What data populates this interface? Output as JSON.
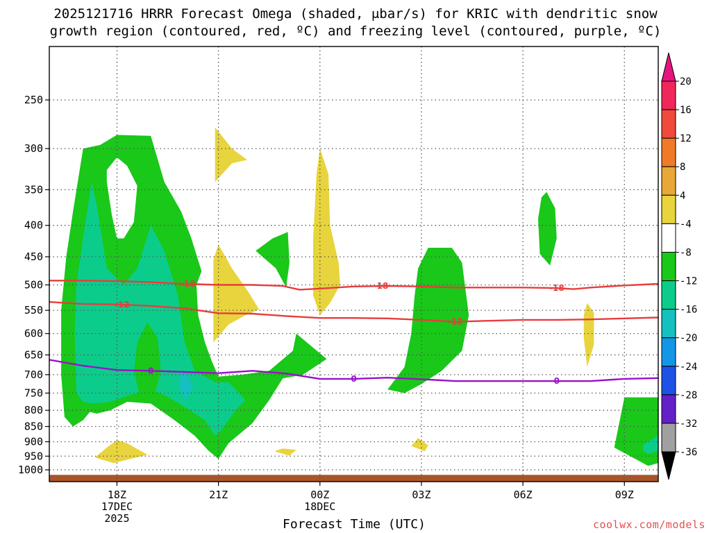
{
  "title": {
    "line1": "2025121716 HRRR Forecast Omega (shaded, μbar/s) for KRIC with dendritic snow",
    "line2": "growth region (contoured, red, ºC) and freezing level (contoured, purple, ºC)"
  },
  "credit": "coolwx.com/models",
  "chart_data": {
    "type": "time-height cross section",
    "title": "2025121716 HRRR Forecast Omega (shaded, μbar/s) for KRIC with dendritic snow growth region (contoured, red, ºC) and freezing level (contoured, purple, ºC)",
    "xlabel": "Forecast Time (UTC)",
    "ylabel": "",
    "x_ticks": [
      {
        "hour": 2,
        "lines": [
          "18Z",
          "17DEC",
          "2025"
        ]
      },
      {
        "hour": 5,
        "lines": [
          "21Z"
        ]
      },
      {
        "hour": 8,
        "lines": [
          "00Z",
          "18DEC"
        ]
      },
      {
        "hour": 11,
        "lines": [
          "03Z"
        ]
      },
      {
        "hour": 14,
        "lines": [
          "06Z"
        ]
      },
      {
        "hour": 17,
        "lines": [
          "09Z"
        ]
      }
    ],
    "xlim": [
      0,
      18
    ],
    "y_ticks": [
      250,
      300,
      350,
      400,
      450,
      500,
      550,
      600,
      650,
      700,
      750,
      800,
      850,
      900,
      950,
      1000
    ],
    "ylim_hpa": [
      1040,
      190
    ],
    "grid": true,
    "colorbar": {
      "labels": [
        "20",
        "16",
        "12",
        "8",
        "4",
        "-4",
        "-8",
        "-12",
        "-16",
        "-20",
        "-24",
        "-28",
        "-32",
        "-36"
      ],
      "colors": [
        "#f0275a",
        "#f04a3c",
        "#f07a28",
        "#e8a838",
        "#e8d43c",
        "#ffffff",
        "#19c819",
        "#0ccc8c",
        "#14c0c0",
        "#1496e6",
        "#1e52e6",
        "#6420c8",
        "#a00ac8",
        "#a0a0a0"
      ],
      "top_arrow_color": "#e6147d",
      "bottom_arrow_color": "#000000"
    },
    "omega_colors": {
      "green": "#19c819",
      "teal": "#0ccc8c",
      "cyan": "#14c0c0",
      "yellow": "#e8d43c"
    },
    "contours": [
      {
        "level": "-18",
        "color": "#e83c3c",
        "points": [
          [
            0,
            492
          ],
          [
            1,
            492
          ],
          [
            2,
            493
          ],
          [
            3,
            495
          ],
          [
            4,
            498
          ],
          [
            5,
            500
          ],
          [
            6,
            500
          ],
          [
            6.9,
            502
          ],
          [
            7.4,
            509
          ],
          [
            8,
            507
          ],
          [
            9,
            503
          ],
          [
            10,
            502
          ],
          [
            11,
            503
          ],
          [
            12,
            505
          ],
          [
            13,
            505
          ],
          [
            14,
            505
          ],
          [
            15,
            506
          ],
          [
            15.5,
            508
          ],
          [
            16,
            505
          ],
          [
            17,
            501
          ],
          [
            18,
            498
          ]
        ],
        "labels": [
          {
            "hour": 4.1
          },
          {
            "hour": 9.8
          },
          {
            "hour": 15.0
          }
        ]
      },
      {
        "level": "-12",
        "color": "#e83c3c",
        "points": [
          [
            0,
            533
          ],
          [
            1,
            537
          ],
          [
            2,
            538
          ],
          [
            3,
            541
          ],
          [
            4,
            546
          ],
          [
            5,
            556
          ],
          [
            6,
            557
          ],
          [
            7,
            562
          ],
          [
            8,
            566
          ],
          [
            9,
            566
          ],
          [
            10,
            567
          ],
          [
            11,
            570
          ],
          [
            12,
            574
          ],
          [
            13,
            572
          ],
          [
            14,
            570
          ],
          [
            15,
            570
          ],
          [
            16,
            569
          ],
          [
            17,
            567
          ],
          [
            18,
            565
          ]
        ],
        "labels": [
          {
            "hour": 2.15
          },
          {
            "hour": 12.0
          }
        ]
      },
      {
        "level": "0",
        "color": "#9a10c8",
        "points": [
          [
            0,
            662
          ],
          [
            1,
            677
          ],
          [
            2,
            688
          ],
          [
            3,
            690
          ],
          [
            4,
            693
          ],
          [
            5,
            696
          ],
          [
            6,
            690
          ],
          [
            7,
            697
          ],
          [
            8,
            711
          ],
          [
            9,
            711
          ],
          [
            10,
            708
          ],
          [
            11,
            712
          ],
          [
            12,
            717
          ],
          [
            13,
            717
          ],
          [
            14,
            717
          ],
          [
            15,
            717
          ],
          [
            16,
            717
          ],
          [
            17,
            711
          ],
          [
            18,
            709
          ]
        ],
        "labels": [
          {
            "hour": 3.0
          },
          {
            "hour": 9.0
          },
          {
            "hour": 15.0
          }
        ]
      }
    ],
    "omega_regions": [
      {
        "name": "rising-motion-main-green",
        "class": "-8 to -4",
        "color": "green",
        "points": [
          [
            0.45,
            820
          ],
          [
            0.35,
            700
          ],
          [
            0.35,
            550
          ],
          [
            0.5,
            450
          ],
          [
            0.7,
            380
          ],
          [
            1.0,
            300
          ],
          [
            1.5,
            296
          ],
          [
            2.0,
            285
          ],
          [
            3.0,
            286
          ],
          [
            3.4,
            340
          ],
          [
            3.9,
            380
          ],
          [
            4.2,
            420
          ],
          [
            4.5,
            475
          ],
          [
            4.35,
            500
          ],
          [
            4.4,
            560
          ],
          [
            4.6,
            620
          ],
          [
            4.8,
            665
          ],
          [
            5.0,
            705
          ],
          [
            5.7,
            700
          ],
          [
            6.5,
            690
          ],
          [
            7.2,
            640
          ],
          [
            7.3,
            600
          ],
          [
            8.2,
            660
          ],
          [
            7.5,
            700
          ],
          [
            6.9,
            710
          ],
          [
            6.5,
            770
          ],
          [
            6.0,
            840
          ],
          [
            5.3,
            905
          ],
          [
            5.0,
            960
          ],
          [
            4.7,
            930
          ],
          [
            4.3,
            880
          ],
          [
            3.7,
            830
          ],
          [
            3.0,
            780
          ],
          [
            2.3,
            775
          ],
          [
            1.8,
            800
          ],
          [
            1.4,
            810
          ],
          [
            1.2,
            805
          ],
          [
            1.0,
            830
          ],
          [
            0.7,
            850
          ]
        ]
      },
      {
        "name": "rising-motion-main-teal",
        "class": "-12 to -8",
        "color": "teal",
        "points": [
          [
            0.8,
            750
          ],
          [
            0.75,
            600
          ],
          [
            0.8,
            500
          ],
          [
            1.0,
            420
          ],
          [
            1.25,
            340
          ],
          [
            1.4,
            370
          ],
          [
            1.7,
            470
          ],
          [
            2.2,
            500
          ],
          [
            2.6,
            470
          ],
          [
            3.0,
            400
          ],
          [
            3.4,
            440
          ],
          [
            3.8,
            520
          ],
          [
            4.0,
            620
          ],
          [
            4.3,
            690
          ],
          [
            4.9,
            720
          ],
          [
            5.3,
            720
          ],
          [
            5.8,
            770
          ],
          [
            5.5,
            800
          ],
          [
            5.1,
            860
          ],
          [
            4.9,
            880
          ],
          [
            4.6,
            830
          ],
          [
            4.0,
            790
          ],
          [
            3.5,
            760
          ],
          [
            3.0,
            740
          ],
          [
            2.4,
            755
          ],
          [
            1.8,
            775
          ],
          [
            1.3,
            780
          ],
          [
            1.0,
            775
          ]
        ]
      },
      {
        "name": "rising-motion-main-cyan",
        "class": "-16 to -12",
        "color": "cyan",
        "points": [
          [
            3.85,
            700
          ],
          [
            4.05,
            695
          ],
          [
            4.25,
            730
          ],
          [
            4.05,
            770
          ],
          [
            3.85,
            740
          ]
        ]
      },
      {
        "name": "rising-motion-green-inset",
        "class": "-8 to -4",
        "color": "green",
        "points": [
          [
            2.5,
            690
          ],
          [
            2.6,
            620
          ],
          [
            2.9,
            575
          ],
          [
            3.2,
            610
          ],
          [
            3.3,
            690
          ],
          [
            3.1,
            760
          ],
          [
            2.7,
            770
          ]
        ]
      },
      {
        "name": "omega-white-hole",
        "class": "-4 to 4",
        "color": "white",
        "points": [
          [
            1.7,
            340
          ],
          [
            1.7,
            325
          ],
          [
            2.0,
            310
          ],
          [
            2.3,
            320
          ],
          [
            2.6,
            345
          ],
          [
            2.5,
            395
          ],
          [
            2.2,
            420
          ],
          [
            2.0,
            420
          ],
          [
            1.85,
            385
          ]
        ]
      },
      {
        "name": "rising-motion-small-a",
        "class": "-8 to -4",
        "color": "green",
        "points": [
          [
            6.1,
            440
          ],
          [
            6.6,
            420
          ],
          [
            7.05,
            410
          ],
          [
            7.1,
            460
          ],
          [
            7.0,
            505
          ],
          [
            6.7,
            470
          ]
        ]
      },
      {
        "name": "rising-motion-03z",
        "class": "-8 to -4",
        "color": "green",
        "points": [
          [
            10.0,
            740
          ],
          [
            10.5,
            680
          ],
          [
            10.7,
            600
          ],
          [
            10.8,
            520
          ],
          [
            10.9,
            470
          ],
          [
            11.2,
            435
          ],
          [
            11.9,
            435
          ],
          [
            12.2,
            460
          ],
          [
            12.4,
            560
          ],
          [
            12.2,
            640
          ],
          [
            11.6,
            690
          ],
          [
            11.0,
            725
          ],
          [
            10.5,
            750
          ]
        ]
      },
      {
        "name": "rising-motion-07z",
        "class": "-8 to -4",
        "color": "green",
        "points": [
          [
            14.45,
            390
          ],
          [
            14.55,
            360
          ],
          [
            14.7,
            353
          ],
          [
            14.95,
            375
          ],
          [
            15.0,
            420
          ],
          [
            14.8,
            465
          ],
          [
            14.5,
            445
          ]
        ]
      },
      {
        "name": "rising-motion-09z",
        "class": "-8 to -4",
        "color": "green",
        "points": [
          [
            17.0,
            762
          ],
          [
            18.0,
            762
          ],
          [
            18.0,
            975
          ],
          [
            17.7,
            985
          ],
          [
            16.7,
            920
          ]
        ]
      },
      {
        "name": "rising-motion-09z-teal",
        "class": "-12 to -8",
        "color": "teal",
        "points": [
          [
            17.55,
            910
          ],
          [
            18.0,
            880
          ],
          [
            18.0,
            930
          ],
          [
            17.7,
            942
          ],
          [
            17.55,
            930
          ]
        ]
      },
      {
        "name": "sinking-motion-20z",
        "class": "4 to 8",
        "color": "yellow",
        "points": [
          [
            4.9,
            277
          ],
          [
            5.4,
            300
          ],
          [
            5.85,
            313
          ],
          [
            5.4,
            317
          ],
          [
            4.9,
            340
          ]
        ]
      },
      {
        "name": "sinking-motion-22z",
        "class": "4 to 8",
        "color": "yellow",
        "points": [
          [
            4.85,
            480
          ],
          [
            4.85,
            455
          ],
          [
            5.0,
            430
          ],
          [
            5.4,
            470
          ],
          [
            5.9,
            515
          ],
          [
            6.2,
            548
          ],
          [
            5.8,
            560
          ],
          [
            5.3,
            580
          ],
          [
            4.85,
            620
          ]
        ]
      },
      {
        "name": "sinking-motion-00z",
        "class": "4 to 8",
        "color": "yellow",
        "points": [
          [
            7.8,
            520
          ],
          [
            7.8,
            420
          ],
          [
            7.9,
            330
          ],
          [
            8.0,
            300
          ],
          [
            8.25,
            330
          ],
          [
            8.3,
            400
          ],
          [
            8.55,
            460
          ],
          [
            8.6,
            500
          ],
          [
            8.3,
            535
          ],
          [
            8.0,
            560
          ]
        ]
      },
      {
        "name": "sinking-motion-08z",
        "class": "4 to 8",
        "color": "yellow",
        "points": [
          [
            15.8,
            560
          ],
          [
            15.9,
            535
          ],
          [
            16.1,
            555
          ],
          [
            16.1,
            625
          ],
          [
            15.9,
            680
          ],
          [
            15.8,
            610
          ]
        ]
      },
      {
        "name": "sinking-motion-sfc-a",
        "class": "4 to 8",
        "color": "yellow",
        "points": [
          [
            1.35,
            955
          ],
          [
            1.7,
            920
          ],
          [
            2.0,
            895
          ],
          [
            2.3,
            905
          ],
          [
            2.9,
            945
          ],
          [
            2.4,
            960
          ],
          [
            1.9,
            975
          ]
        ]
      },
      {
        "name": "sinking-motion-sfc-b",
        "class": "4 to 8",
        "color": "yellow",
        "points": [
          [
            6.65,
            933
          ],
          [
            6.9,
            923
          ],
          [
            7.3,
            928
          ],
          [
            7.1,
            948
          ]
        ]
      },
      {
        "name": "sinking-motion-sfc-c",
        "class": "4 to 8",
        "color": "yellow",
        "points": [
          [
            10.7,
            915
          ],
          [
            10.9,
            888
          ],
          [
            11.2,
            912
          ],
          [
            11.1,
            933
          ]
        ]
      }
    ],
    "ground": {
      "color": "#a8552a",
      "top_hpa": 1019
    }
  }
}
